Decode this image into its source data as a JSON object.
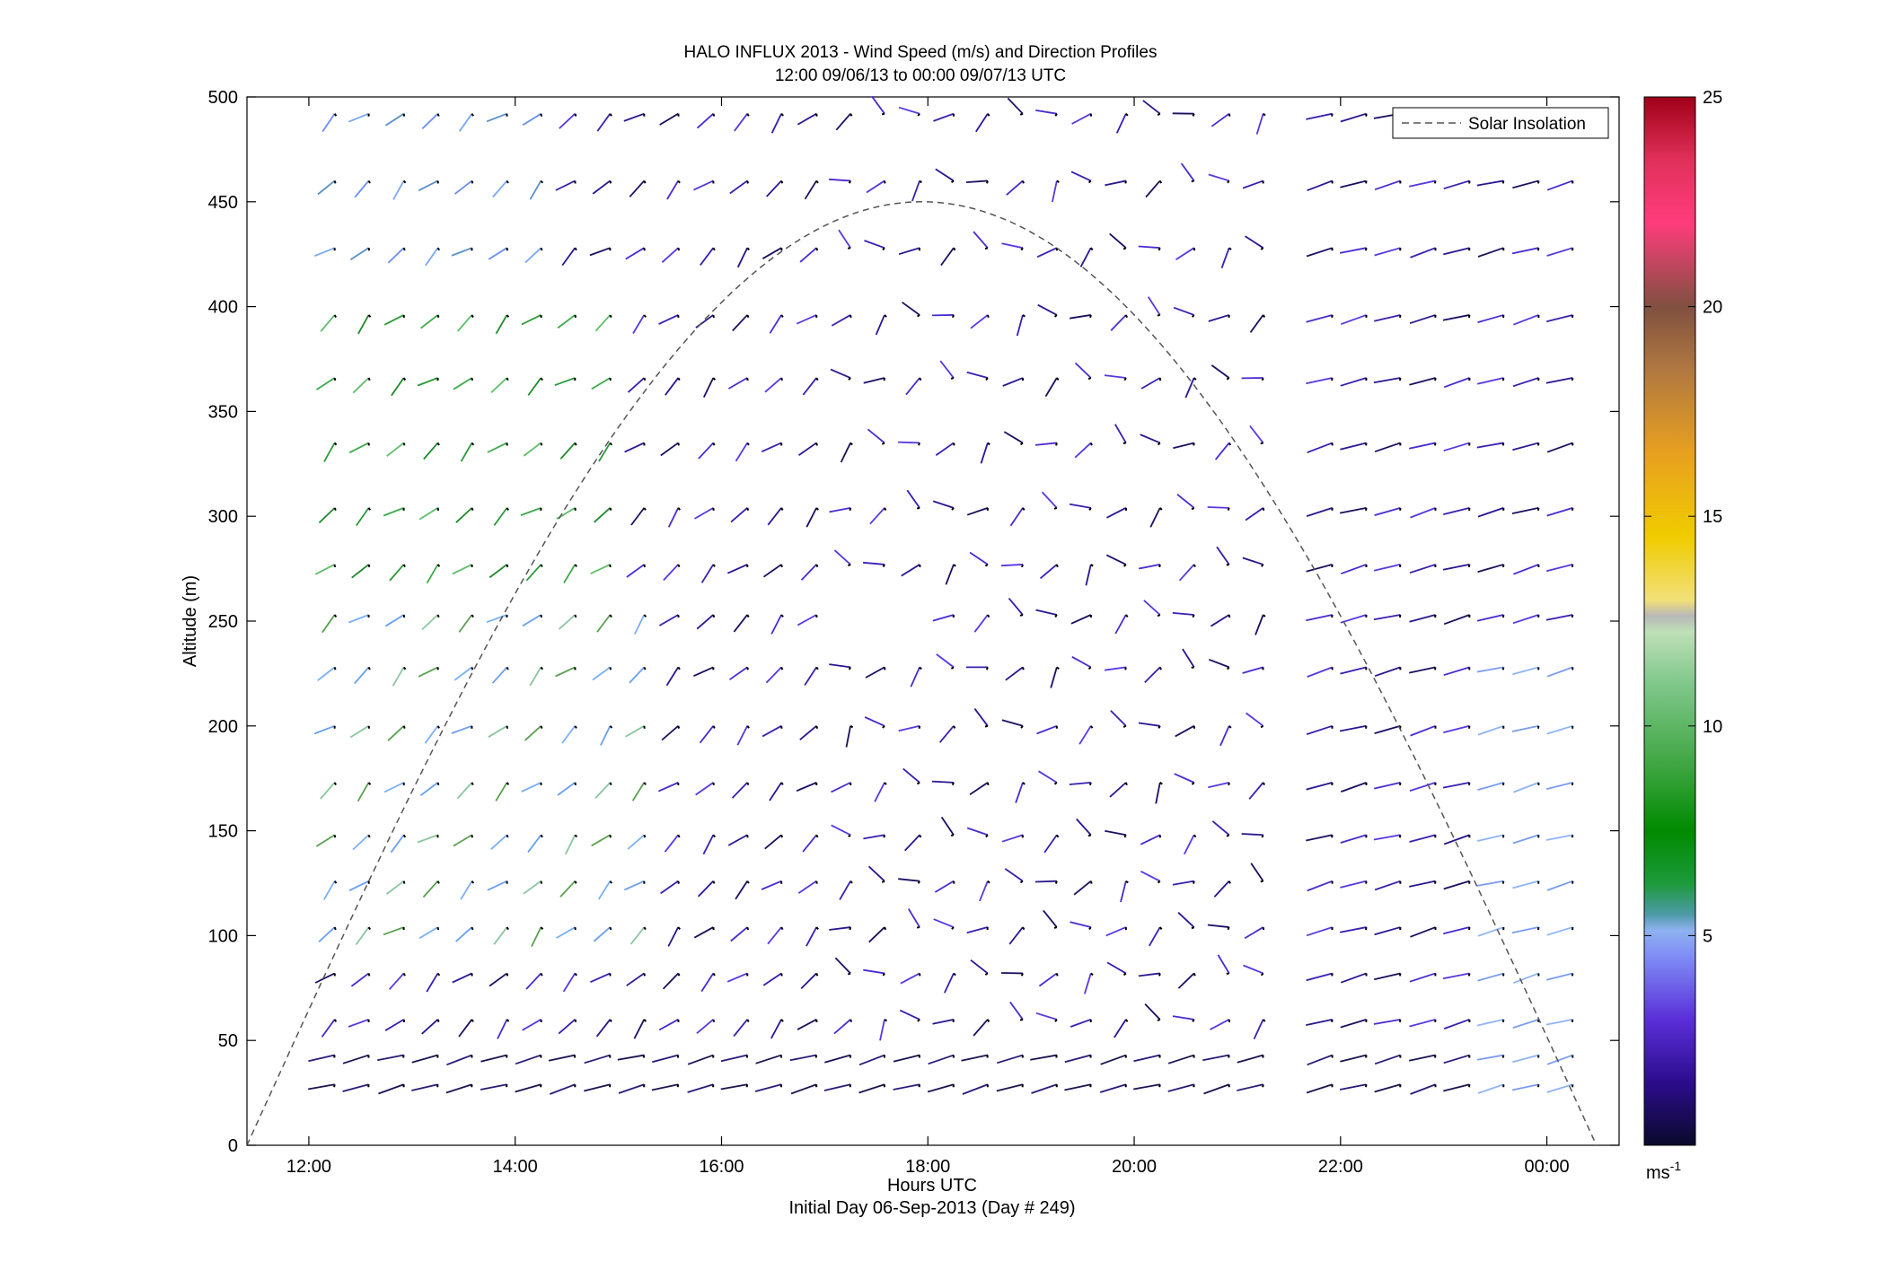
{
  "chart_data": {
    "type": "wind_barb_profile",
    "title": "HALO INFLUX 2013 - Wind Speed (m/s) and Direction Profiles",
    "subtitle": "12:00 09/06/13 to 00:00 09/07/13  UTC",
    "xlabel": "Hours UTC",
    "xlabel2": "Initial Day 06-Sep-2013 (Day # 249)",
    "ylabel": "Altitude (m)",
    "x_range_hours": [
      11.4,
      24.7
    ],
    "ylim": [
      0,
      500
    ],
    "x_ticks": [
      {
        "value": 12,
        "label": "12:00"
      },
      {
        "value": 14,
        "label": "14:00"
      },
      {
        "value": 16,
        "label": "16:00"
      },
      {
        "value": 18,
        "label": "18:00"
      },
      {
        "value": 20,
        "label": "20:00"
      },
      {
        "value": 22,
        "label": "22:00"
      },
      {
        "value": 24,
        "label": "00:00"
      }
    ],
    "y_ticks": [
      0,
      50,
      100,
      150,
      200,
      250,
      300,
      350,
      400,
      450,
      500
    ],
    "legend": {
      "entries": [
        "Solar Insolation"
      ],
      "placement": "top-right"
    },
    "colorbar": {
      "range": [
        0,
        25
      ],
      "ticks": [
        5,
        10,
        15,
        20,
        25
      ],
      "unit": "ms",
      "unit_exp": "-1"
    },
    "solar_insolation": {
      "style": "dashed",
      "start_hour": 11.4,
      "peak_hour": 17.8,
      "peak_altitude": 450,
      "end_hour": 24.48
    },
    "grid": false,
    "wind_profiles": {
      "times_hours": [
        12.25,
        12.58,
        12.92,
        13.25,
        13.58,
        13.92,
        14.25,
        14.58,
        14.92,
        15.25,
        15.58,
        15.92,
        16.25,
        16.58,
        16.92,
        17.25,
        17.58,
        17.92,
        18.25,
        18.58,
        18.92,
        19.25,
        19.58,
        19.92,
        20.25,
        20.58,
        20.92,
        21.25,
        21.92,
        22.25,
        22.58,
        22.92,
        23.25,
        23.58,
        23.92,
        24.25
      ],
      "altitudes_m": [
        29,
        43,
        60,
        82,
        104,
        126,
        148,
        173,
        200,
        228,
        253,
        277,
        304,
        335,
        366,
        396,
        428,
        460,
        492
      ],
      "colorscale": "speed",
      "note": "segment direction and colour vary per sample"
    }
  }
}
